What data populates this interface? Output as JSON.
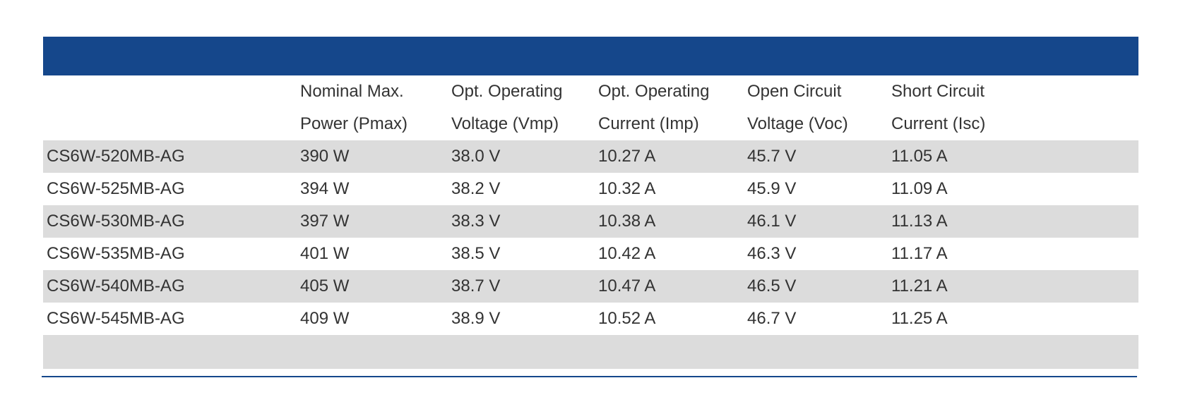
{
  "table": {
    "headers": [
      {
        "line1": "",
        "line2": ""
      },
      {
        "line1": "Nominal Max.",
        "line2": "Power (Pmax)"
      },
      {
        "line1": "Opt. Operating",
        "line2": "Voltage (Vmp)"
      },
      {
        "line1": "Opt. Operating",
        "line2": "Current (Imp)"
      },
      {
        "line1": "Open Circuit",
        "line2": "Voltage (Voc)"
      },
      {
        "line1": "Short Circuit",
        "line2": "Current (Isc)"
      }
    ],
    "rows": [
      [
        "CS6W-520MB-AG",
        "390 W",
        "38.0 V",
        "10.27 A",
        "45.7 V",
        "11.05 A"
      ],
      [
        "CS6W-525MB-AG",
        "394 W",
        "38.2 V",
        "10.32 A",
        "45.9 V",
        "11.09 A"
      ],
      [
        "CS6W-530MB-AG",
        "397 W",
        "38.3 V",
        "10.38 A",
        "46.1 V",
        "11.13 A"
      ],
      [
        "CS6W-535MB-AG",
        "401 W",
        "38.5 V",
        "10.42 A",
        "46.3 V",
        "11.17 A"
      ],
      [
        "CS6W-540MB-AG",
        "405 W",
        "38.7 V",
        "10.47 A",
        "46.5 V",
        "11.21 A"
      ],
      [
        "CS6W-545MB-AG",
        "409 W",
        "38.9 V",
        "10.52 A",
        "46.7 V",
        "11.25 A"
      ]
    ]
  },
  "colors": {
    "header_bar": "#15478b",
    "row_shade": "#dcdcdc",
    "text": "#333333"
  }
}
